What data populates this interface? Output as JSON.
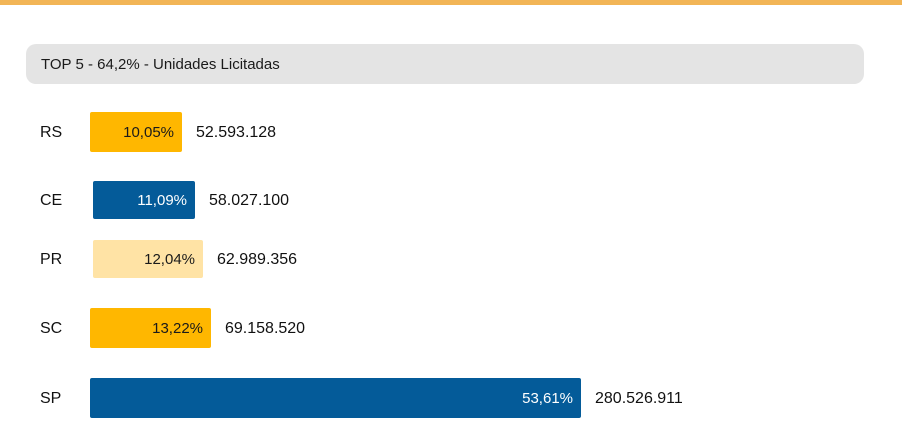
{
  "header": {
    "title": "TOP 5 - 64,2% - Unidades Licitadas"
  },
  "colors": {
    "accent_rule": "#f2b556",
    "header_bg": "#e4e4e4",
    "gold": "#ffb700",
    "blue": "#045b99",
    "light_gold": "#ffe3a5"
  },
  "chart_data": {
    "type": "bar",
    "orientation": "horizontal",
    "title": "TOP 5 - 64,2% - Unidades Licitadas",
    "categories": [
      "RS",
      "CE",
      "PR",
      "SC",
      "SP"
    ],
    "values": [
      52593128,
      58027100,
      62989356,
      69158520,
      280526911
    ],
    "value_labels": [
      "52.593.128",
      "58.027.100",
      "62.989.356",
      "69.158.520",
      "280.526.911"
    ],
    "percent_labels": [
      "10,05%",
      "11,09%",
      "12,04%",
      "13,22%",
      "53,61%"
    ],
    "percent_values": [
      10.05,
      11.09,
      12.04,
      13.22,
      53.61
    ],
    "bar_colors": [
      "#ffb700",
      "#045b99",
      "#ffe3a5",
      "#ffb700",
      "#045b99"
    ],
    "percent_label_colors": [
      "#1a1a1a",
      "#ffffff",
      "#1a1a1a",
      "#1a1a1a",
      "#ffffff"
    ],
    "grid": false,
    "legend": "none"
  }
}
